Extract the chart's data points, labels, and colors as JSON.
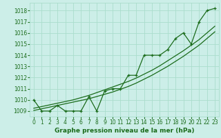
{
  "title": "Graphe pression niveau de la mer (hPa)",
  "bg_color": "#cceee8",
  "grid_color": "#aaddcc",
  "line_color": "#1a6b1a",
  "xlim": [
    -0.5,
    23.5
  ],
  "ylim": [
    1008.5,
    1018.7
  ],
  "yticks": [
    1009,
    1010,
    1011,
    1012,
    1013,
    1014,
    1015,
    1016,
    1017,
    1018
  ],
  "xticks": [
    0,
    1,
    2,
    3,
    4,
    5,
    6,
    7,
    8,
    9,
    10,
    11,
    12,
    13,
    14,
    15,
    16,
    17,
    18,
    19,
    20,
    21,
    22,
    23
  ],
  "main_series": [
    1010.0,
    1009.0,
    1009.0,
    1009.5,
    1009.0,
    1009.0,
    1009.0,
    1010.3,
    1009.0,
    1010.8,
    1011.0,
    1011.0,
    1012.2,
    1012.2,
    1014.0,
    1014.0,
    1014.0,
    1014.5,
    1015.5,
    1016.0,
    1015.0,
    1017.0,
    1018.0,
    1018.2
  ],
  "smooth_low": [
    1009.05,
    1009.2,
    1009.35,
    1009.5,
    1009.65,
    1009.8,
    1009.95,
    1010.1,
    1010.3,
    1010.5,
    1010.7,
    1010.95,
    1011.2,
    1011.5,
    1011.85,
    1012.2,
    1012.6,
    1013.0,
    1013.45,
    1013.9,
    1014.4,
    1014.9,
    1015.5,
    1016.1
  ],
  "smooth_high": [
    1009.25,
    1009.4,
    1009.55,
    1009.7,
    1009.85,
    1010.0,
    1010.2,
    1010.4,
    1010.65,
    1010.9,
    1011.15,
    1011.4,
    1011.65,
    1011.95,
    1012.3,
    1012.65,
    1013.05,
    1013.5,
    1013.95,
    1014.4,
    1014.9,
    1015.4,
    1016.0,
    1016.6
  ],
  "title_fontsize": 6.5,
  "tick_fontsize": 5.5
}
